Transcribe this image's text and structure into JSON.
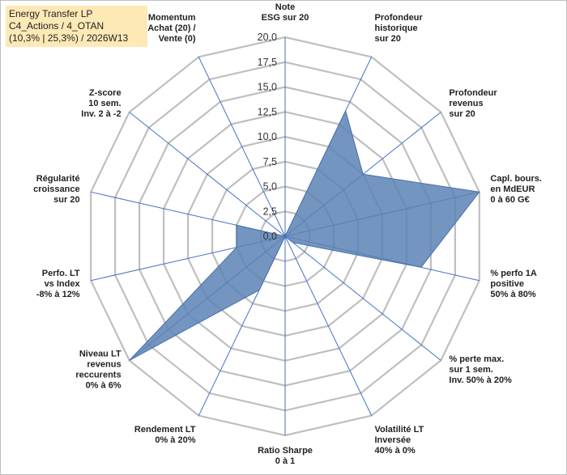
{
  "title_lines": [
    "Energy Transfer LP",
    "C4_Actions / 4_OTAN",
    "(10,3% | 25,3%) / 2026W13"
  ],
  "chart_data": {
    "type": "radar",
    "title": "Energy Transfer LP",
    "rmin": 0,
    "rmax": 20,
    "ticks": [
      "0,0",
      "2,5",
      "5,0",
      "7,5",
      "10,0",
      "12,5",
      "15,0",
      "17,5",
      "20,0"
    ],
    "tick_values": [
      0,
      2.5,
      5,
      7.5,
      10,
      12.5,
      15,
      17.5,
      20
    ],
    "grid": true,
    "axes": [
      {
        "label": [
          "Note",
          "ESG sur 20"
        ],
        "value": 0
      },
      {
        "label": [
          "Profondeur",
          "historique",
          "sur 20"
        ],
        "value": 14
      },
      {
        "label": [
          "Profondeur",
          "revenus",
          "sur 20"
        ],
        "value": 10
      },
      {
        "label": [
          "Capl. bours.",
          "en MdEUR",
          "0 à 60 G€"
        ],
        "value": 20
      },
      {
        "label": [
          "% perfo 1A",
          "positive",
          "50% à 80%"
        ],
        "value": 14
      },
      {
        "label": [
          "% perte max.",
          "sur 1 sem.",
          "Inv. 50% à 20%"
        ],
        "value": 1
      },
      {
        "label": [
          "Volatilité LT",
          "Inversée",
          "40% à 0%"
        ],
        "value": 0
      },
      {
        "label": [
          "Ratio Sharpe",
          "0 à 1"
        ],
        "value": 0
      },
      {
        "label": [
          "Rendement LT",
          "0% à 20%"
        ],
        "value": 6
      },
      {
        "label": [
          "Niveau LT",
          "revenus",
          "reccurents",
          "0% à 6%"
        ],
        "value": 20
      },
      {
        "label": [
          "Perfo. LT",
          "vs Index",
          "-8% à 12%"
        ],
        "value": 5
      },
      {
        "label": [
          "Régularité",
          "croissance",
          "sur 20"
        ],
        "value": 5
      },
      {
        "label": [
          "Z-score",
          "10 sem.",
          "Inv. 2 à -2"
        ],
        "value": 0
      },
      {
        "label": [
          "Momentum",
          "Achat (20) /",
          "Vente (0)"
        ],
        "value": 0
      }
    ],
    "colors": {
      "fill": "#5b82b5",
      "stroke": "#4a72a8",
      "spoke": "#4472c4",
      "grid": "#bfbfbf"
    }
  }
}
